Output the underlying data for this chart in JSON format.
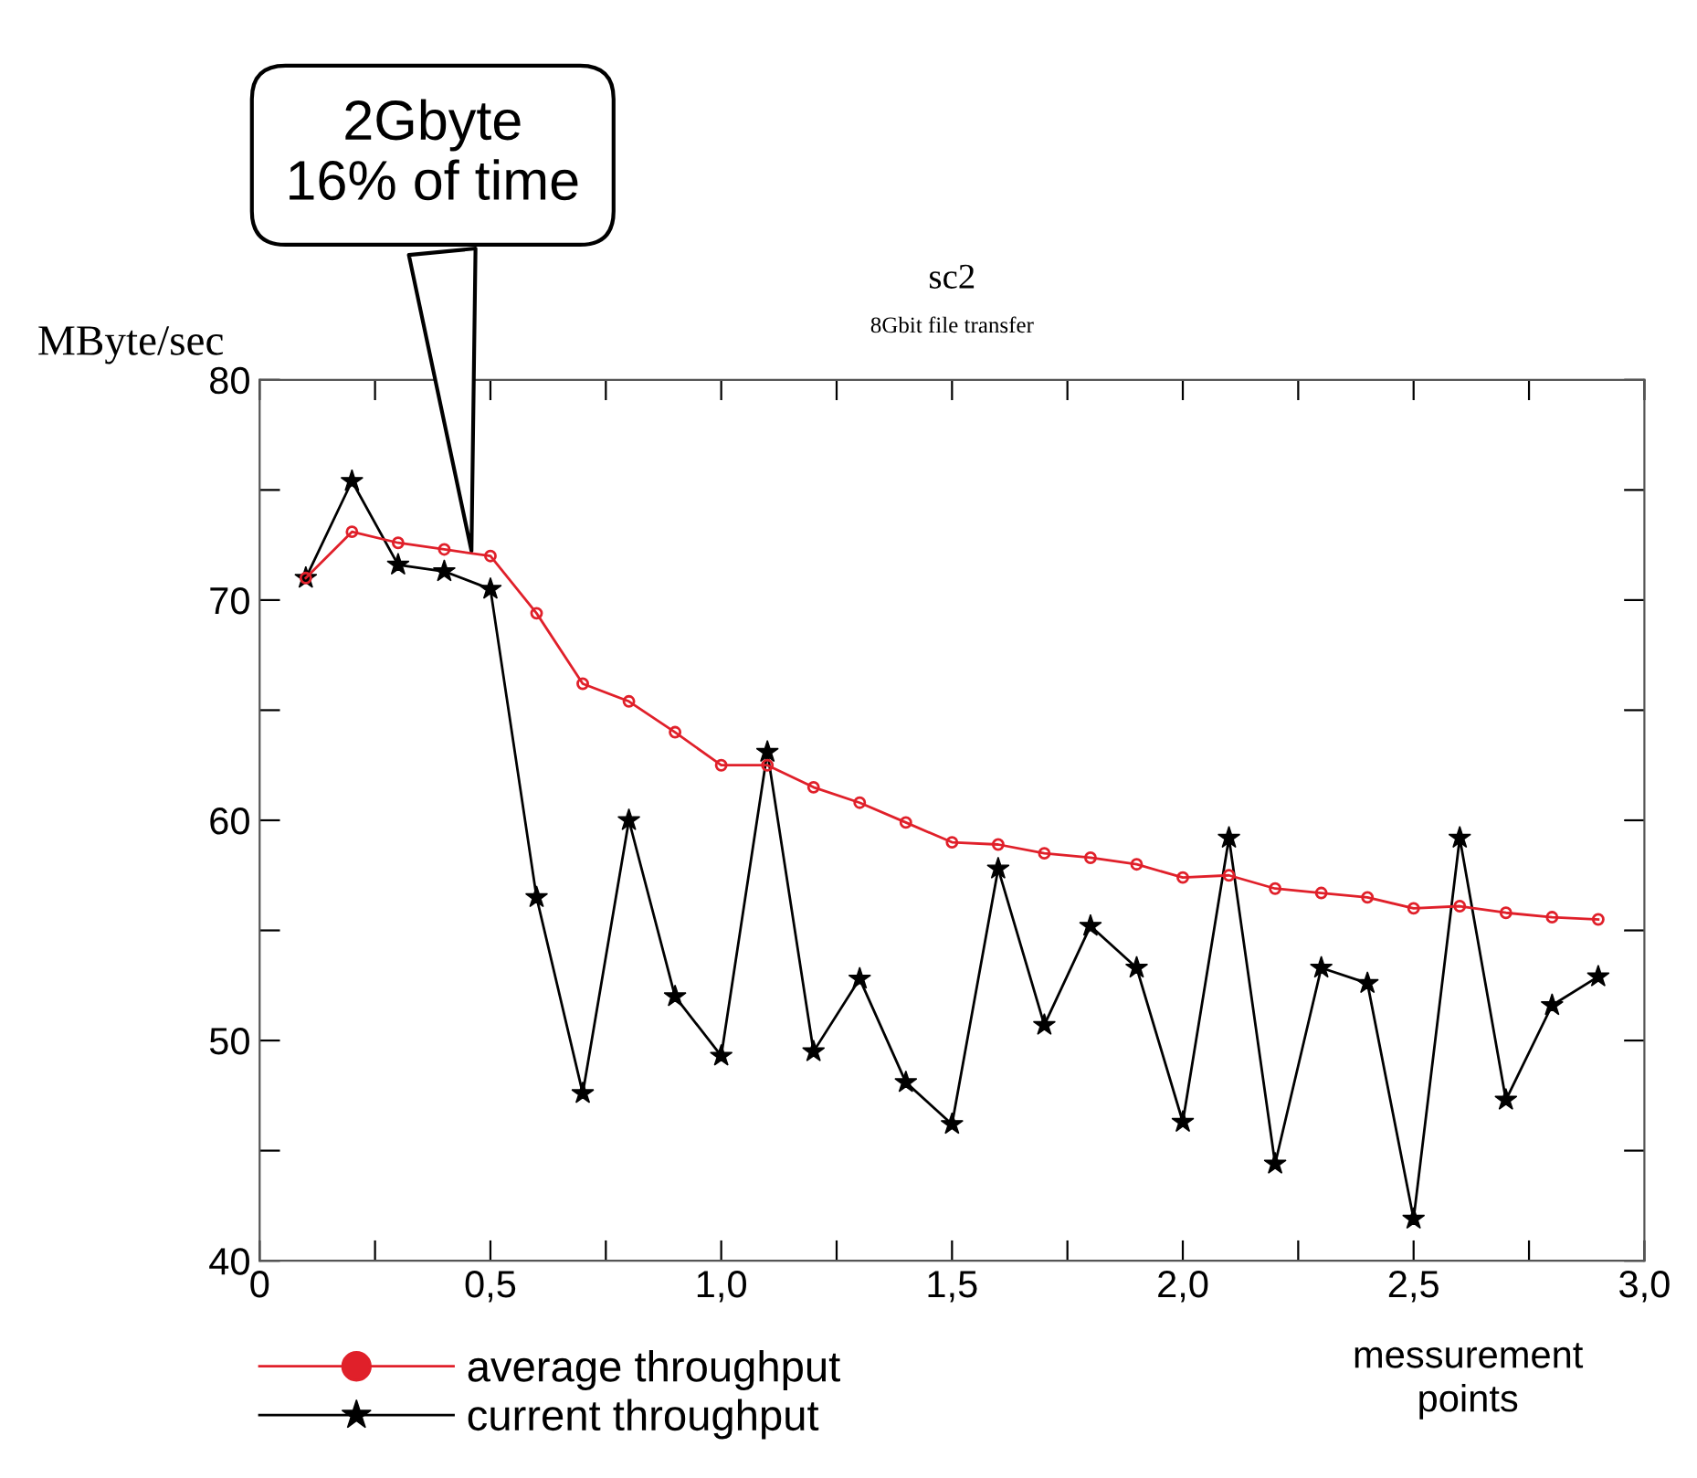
{
  "chart_data": {
    "type": "line",
    "title": "sc2",
    "subtitle": "8Gbit file transfer",
    "ylabel": "MByte/sec",
    "xlabel": "messurement\npoints",
    "x": [
      0.1,
      0.2,
      0.3,
      0.4,
      0.5,
      0.6,
      0.7,
      0.8,
      0.9,
      1.0,
      1.1,
      1.2,
      1.3,
      1.4,
      1.5,
      1.6,
      1.7,
      1.8,
      1.9,
      2.0,
      2.1,
      2.2,
      2.3,
      2.4,
      2.5,
      2.6,
      2.7,
      2.8,
      2.9
    ],
    "series": [
      {
        "name": "average throughput",
        "color": "#e0202a",
        "marker": "circle",
        "values": [
          71.0,
          73.1,
          72.6,
          72.3,
          72.0,
          69.4,
          66.2,
          65.4,
          64.0,
          62.5,
          62.5,
          61.5,
          60.8,
          59.9,
          59.0,
          58.9,
          58.5,
          58.3,
          58.0,
          57.4,
          57.5,
          56.9,
          56.7,
          56.5,
          56.0,
          56.1,
          55.8,
          55.6,
          55.5
        ]
      },
      {
        "name": "current throughput",
        "color": "#000000",
        "marker": "star",
        "values": [
          71.0,
          75.4,
          71.6,
          71.3,
          70.5,
          56.5,
          47.6,
          60.0,
          52.0,
          49.3,
          63.1,
          49.5,
          52.8,
          48.1,
          46.2,
          57.8,
          50.7,
          55.2,
          53.3,
          46.3,
          59.2,
          44.4,
          53.3,
          52.6,
          41.9,
          59.2,
          47.3,
          51.6,
          52.9
        ]
      }
    ],
    "xlim": [
      0,
      3.0
    ],
    "ylim": [
      40,
      80
    ],
    "xticks": [
      0,
      {
        "value": 0.25,
        "label": null
      },
      {
        "value": 0.5,
        "label": "0,5"
      },
      {
        "value": 0.75,
        "label": null
      },
      {
        "value": 1.0,
        "label": "1,0"
      },
      {
        "value": 1.25,
        "label": null
      },
      {
        "value": 1.5,
        "label": "1,5"
      },
      {
        "value": 1.75,
        "label": null
      },
      {
        "value": 2.0,
        "label": "2,0"
      },
      {
        "value": 2.25,
        "label": null
      },
      {
        "value": 2.5,
        "label": "2,5"
      },
      {
        "value": 2.75,
        "label": null
      },
      {
        "value": 3.0,
        "label": "3,0"
      }
    ],
    "yticks": [
      40,
      {
        "value": 45,
        "label": null
      },
      50,
      {
        "value": 55,
        "label": null
      },
      60,
      {
        "value": 65,
        "label": null
      },
      70,
      {
        "value": 75,
        "label": null
      },
      80
    ],
    "annotations": [
      {
        "text": "2Gbyte\n16% of time",
        "x": 0.46,
        "y": 72.0
      }
    ],
    "legend": "bottom left",
    "grid": false,
    "line_style": "solid"
  }
}
